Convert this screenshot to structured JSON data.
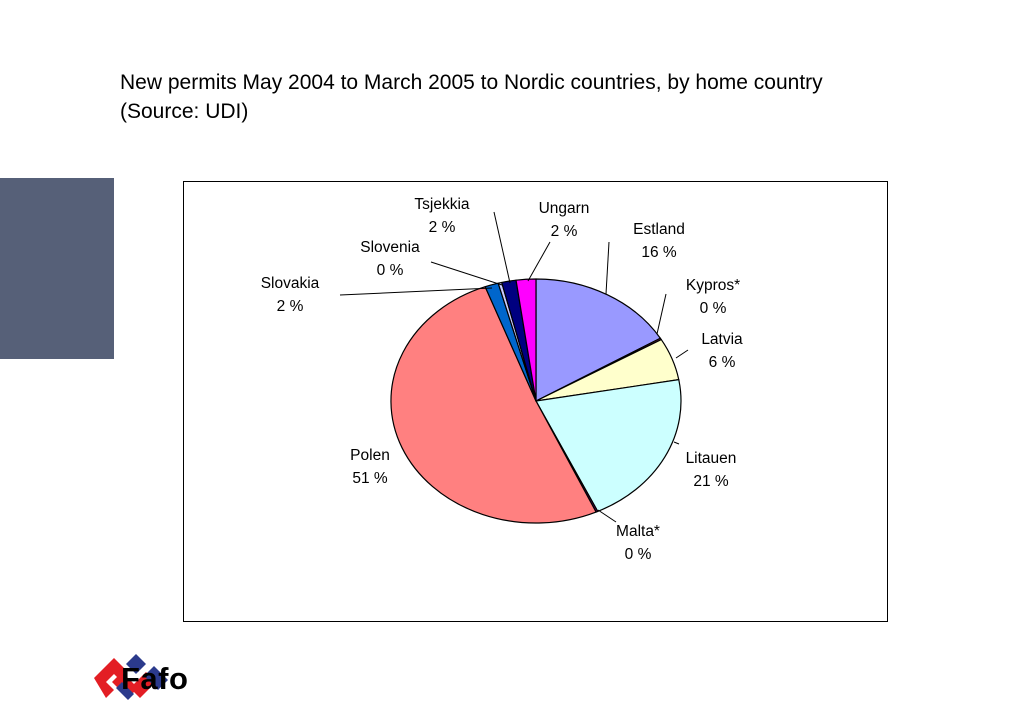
{
  "title": {
    "line1": "New permits May 2004 to March 2005 to Nordic countries, by home country",
    "line2": "(Source: UDI)"
  },
  "logo": {
    "text": "Fafo",
    "colors": {
      "red": "#e31e24",
      "blue": "#2b3a8c"
    }
  },
  "chart_data": {
    "type": "pie",
    "title": "",
    "slices": [
      {
        "label": "Estland",
        "value_label": "16 %",
        "value": 16.4,
        "color": "#9999ff"
      },
      {
        "label": "Kypros*",
        "value_label": "0 %",
        "value": 0.2,
        "color": "#993366"
      },
      {
        "label": "Latvia",
        "value_label": "6 %",
        "value": 5.6,
        "color": "#ffffcc"
      },
      {
        "label": "Litauen",
        "value_label": "21 %",
        "value": 20.8,
        "color": "#ccffff"
      },
      {
        "label": "Malta*",
        "value_label": "0 %",
        "value": 0.2,
        "color": "#660066"
      },
      {
        "label": "Polen",
        "value_label": "51 %",
        "value": 51.1,
        "color": "#ff8080"
      },
      {
        "label": "Slovakia",
        "value_label": "2 %",
        "value": 1.5,
        "color": "#0066cc"
      },
      {
        "label": "Slovenia",
        "value_label": "0 %",
        "value": 0.4,
        "color": "#ccccff"
      },
      {
        "label": "Tsjekkia",
        "value_label": "2 %",
        "value": 1.6,
        "color": "#000080"
      },
      {
        "label": "Ungarn",
        "value_label": "2 %",
        "value": 2.2,
        "color": "#ff00ff"
      }
    ]
  }
}
